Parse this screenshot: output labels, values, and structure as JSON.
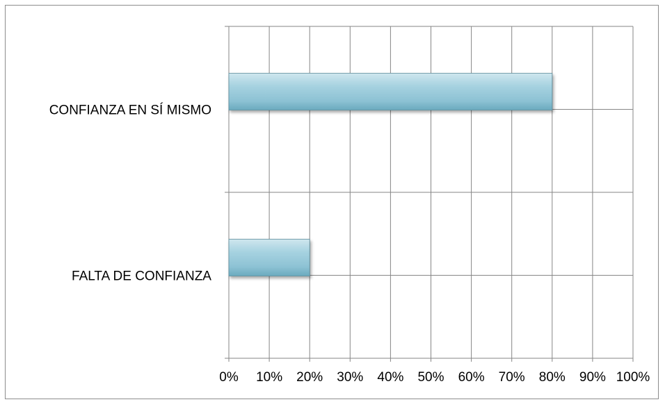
{
  "chart_data": {
    "type": "bar",
    "orientation": "horizontal",
    "categories": [
      "CONFIANZA EN SÍ MISMO",
      "FALTA DE CONFIANZA"
    ],
    "series": [
      {
        "values": [
          80,
          20
        ],
        "color": "#92c6d6"
      }
    ],
    "x_ticks": [
      "0%",
      "10%",
      "20%",
      "30%",
      "40%",
      "50%",
      "60%",
      "70%",
      "80%",
      "90%",
      "100%"
    ],
    "xlim": [
      0,
      100
    ],
    "grid": true,
    "legend": "none"
  }
}
